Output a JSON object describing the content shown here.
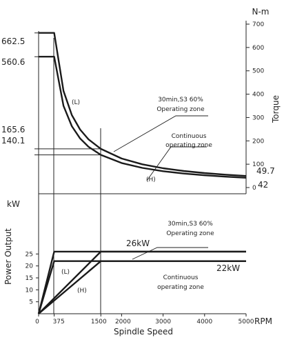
{
  "chart_data": [
    {
      "type": "line",
      "title": "",
      "xlabel": "",
      "ylabel": "Torque",
      "unit": "N-m",
      "xlim": [
        0,
        5000
      ],
      "ylim": [
        0,
        700
      ],
      "yticks": [
        "0",
        "100",
        "200",
        "300",
        "400",
        "500",
        "600",
        "700"
      ],
      "side_values": [
        "662.5",
        "560.6",
        "165.6",
        "140.1",
        "49.7",
        "42"
      ],
      "curve_labels": [
        "(L)",
        "(H)"
      ],
      "annotations": [
        {
          "line1": "30min,S3 60%",
          "line2": "Operating zone"
        },
        {
          "line1": "Continuous",
          "line2": "operating zone"
        }
      ],
      "series": [
        {
          "curve": "L",
          "points": [
            [
              0,
              662.5
            ],
            [
              375,
              662.5
            ],
            [
              600,
              414.1
            ],
            [
              800,
              310.5
            ],
            [
              1000,
              248.4
            ],
            [
              1200,
              207.0
            ],
            [
              1500,
              165.6
            ],
            [
              2000,
              124.2
            ],
            [
              2500,
              99.4
            ],
            [
              3000,
              82.8
            ],
            [
              3500,
              71.0
            ],
            [
              4000,
              62.1
            ],
            [
              4500,
              55.2
            ],
            [
              5000,
              49.7
            ]
          ]
        },
        {
          "curve": "H",
          "points": [
            [
              0,
              560.6
            ],
            [
              375,
              560.6
            ],
            [
              600,
              350.4
            ],
            [
              800,
              262.8
            ],
            [
              1000,
              210.2
            ],
            [
              1200,
              175.2
            ],
            [
              1500,
              140.1
            ],
            [
              2000,
              105.1
            ],
            [
              2500,
              84.1
            ],
            [
              3000,
              70.1
            ],
            [
              3500,
              60.1
            ],
            [
              4000,
              52.6
            ],
            [
              4500,
              46.7
            ],
            [
              5000,
              42.0
            ]
          ]
        }
      ]
    },
    {
      "type": "line",
      "title": "",
      "xlabel": "Spindle Speed",
      "xunit": "RPM",
      "ylabel": "Power Output",
      "unit": "kW",
      "xlim": [
        0,
        5000
      ],
      "ylim": [
        0,
        30
      ],
      "xticks": [
        "0",
        "375",
        "1500",
        "2000",
        "3000",
        "4000",
        "5000"
      ],
      "yticks": [
        "5",
        "10",
        "15",
        "20",
        "25"
      ],
      "power_labels": [
        "26kW",
        "22kW"
      ],
      "curve_labels": [
        "(L)",
        "(H)"
      ],
      "annotations": [
        {
          "line1": "30min,S3 60%",
          "line2": "Operating zone"
        },
        {
          "line1": "Continuous",
          "line2": "operating zone"
        }
      ],
      "series": [
        {
          "curve": "L",
          "points": [
            [
              0,
              0
            ],
            [
              375,
              26
            ],
            [
              5000,
              26
            ]
          ]
        },
        {
          "curve": "L",
          "points": [
            [
              0,
              0
            ],
            [
              375,
              22
            ],
            [
              5000,
              22
            ]
          ]
        },
        {
          "curve": "H",
          "points": [
            [
              0,
              0
            ],
            [
              1500,
              26
            ],
            [
              5000,
              26
            ]
          ]
        },
        {
          "curve": "H",
          "points": [
            [
              0,
              0
            ],
            [
              1500,
              22
            ],
            [
              5000,
              22
            ]
          ]
        }
      ]
    }
  ]
}
